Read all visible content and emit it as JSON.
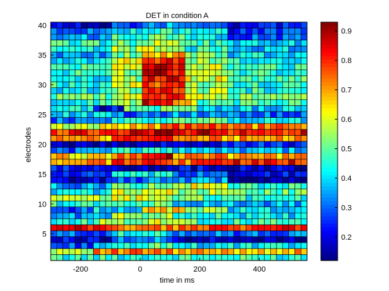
{
  "chart_data": {
    "type": "heatmap",
    "title": "DET in condition A",
    "xlabel": "time in ms",
    "ylabel": "electrodes",
    "xlim": [
      -300,
      560
    ],
    "ylim": [
      1,
      40
    ],
    "x_ticks": [
      -200,
      0,
      200,
      400
    ],
    "y_ticks": [
      5,
      10,
      15,
      20,
      25,
      30,
      35,
      40
    ],
    "grid": "cell borders",
    "rows": 40,
    "cols": 42,
    "colormap": "jet",
    "color_range": [
      0.12,
      0.93
    ],
    "colorbar_ticks": [
      0.2,
      0.3,
      0.4,
      0.5,
      0.6,
      0.7,
      0.8,
      0.9
    ],
    "row_profiles": [
      {
        "electrode": 1,
        "segments": [
          [
            -300,
            560,
            0.45
          ]
        ]
      },
      {
        "electrode": 2,
        "segments": [
          [
            -300,
            -150,
            0.6
          ],
          [
            -150,
            100,
            0.72
          ],
          [
            100,
            560,
            0.68
          ]
        ]
      },
      {
        "electrode": 3,
        "segments": [
          [
            -300,
            -150,
            0.28
          ],
          [
            -150,
            0,
            0.4
          ],
          [
            0,
            150,
            0.48
          ],
          [
            150,
            560,
            0.4
          ]
        ]
      },
      {
        "electrode": 4,
        "segments": [
          [
            -300,
            -100,
            0.2
          ],
          [
            -100,
            100,
            0.32
          ],
          [
            100,
            250,
            0.18
          ],
          [
            250,
            560,
            0.15
          ]
        ]
      },
      {
        "electrode": 5,
        "segments": [
          [
            -300,
            -100,
            0.3
          ],
          [
            -100,
            100,
            0.42
          ],
          [
            100,
            300,
            0.35
          ],
          [
            300,
            560,
            0.3
          ]
        ]
      },
      {
        "electrode": 6,
        "segments": [
          [
            -300,
            -100,
            0.82
          ],
          [
            -100,
            200,
            0.73
          ],
          [
            200,
            560,
            0.8
          ]
        ]
      },
      {
        "electrode": 7,
        "segments": [
          [
            -300,
            -150,
            0.45
          ],
          [
            -150,
            0,
            0.55
          ],
          [
            0,
            200,
            0.6
          ],
          [
            200,
            560,
            0.45
          ]
        ]
      },
      {
        "electrode": 8,
        "segments": [
          [
            -300,
            -100,
            0.35
          ],
          [
            -100,
            100,
            0.55
          ],
          [
            100,
            300,
            0.45
          ],
          [
            300,
            560,
            0.4
          ]
        ]
      },
      {
        "electrode": 9,
        "segments": [
          [
            -300,
            -150,
            0.28
          ],
          [
            -150,
            0,
            0.4
          ],
          [
            0,
            150,
            0.65
          ],
          [
            150,
            300,
            0.55
          ],
          [
            300,
            560,
            0.4
          ]
        ]
      },
      {
        "electrode": 10,
        "segments": [
          [
            -300,
            -100,
            0.45
          ],
          [
            -100,
            100,
            0.5
          ],
          [
            100,
            300,
            0.4
          ],
          [
            300,
            560,
            0.35
          ]
        ]
      },
      {
        "electrode": 11,
        "segments": [
          [
            -300,
            -100,
            0.55
          ],
          [
            -100,
            100,
            0.6
          ],
          [
            100,
            300,
            0.5
          ],
          [
            300,
            560,
            0.45
          ]
        ]
      },
      {
        "electrode": 12,
        "segments": [
          [
            -300,
            -100,
            0.4
          ],
          [
            -100,
            100,
            0.6
          ],
          [
            100,
            300,
            0.55
          ],
          [
            300,
            560,
            0.5
          ]
        ]
      },
      {
        "electrode": 13,
        "segments": [
          [
            -300,
            -100,
            0.35
          ],
          [
            -100,
            100,
            0.5
          ],
          [
            100,
            300,
            0.6
          ],
          [
            300,
            560,
            0.45
          ]
        ]
      },
      {
        "electrode": 14,
        "segments": [
          [
            -300,
            -100,
            0.18
          ],
          [
            -100,
            100,
            0.3
          ],
          [
            100,
            300,
            0.35
          ],
          [
            300,
            560,
            0.15
          ]
        ]
      },
      {
        "electrode": 15,
        "segments": [
          [
            -300,
            -100,
            0.25
          ],
          [
            -100,
            100,
            0.4
          ],
          [
            100,
            300,
            0.3
          ],
          [
            300,
            560,
            0.22
          ]
        ]
      },
      {
        "electrode": 16,
        "segments": [
          [
            -300,
            -100,
            0.22
          ],
          [
            -100,
            100,
            0.18
          ],
          [
            100,
            300,
            0.2
          ],
          [
            300,
            560,
            0.18
          ]
        ]
      },
      {
        "electrode": 17,
        "segments": [
          [
            -300,
            -100,
            0.7
          ],
          [
            -100,
            100,
            0.8
          ],
          [
            100,
            300,
            0.75
          ],
          [
            300,
            560,
            0.82
          ]
        ]
      },
      {
        "electrode": 18,
        "segments": [
          [
            -300,
            -100,
            0.65
          ],
          [
            -100,
            50,
            0.75
          ],
          [
            50,
            100,
            0.92
          ],
          [
            100,
            300,
            0.72
          ],
          [
            300,
            560,
            0.68
          ]
        ]
      },
      {
        "electrode": 19,
        "segments": [
          [
            -300,
            -100,
            0.3
          ],
          [
            -100,
            100,
            0.45
          ],
          [
            100,
            300,
            0.4
          ],
          [
            300,
            560,
            0.35
          ]
        ]
      },
      {
        "electrode": 20,
        "segments": [
          [
            -300,
            -100,
            0.15
          ],
          [
            -100,
            100,
            0.18
          ],
          [
            100,
            300,
            0.2
          ],
          [
            300,
            560,
            0.25
          ]
        ]
      },
      {
        "electrode": 21,
        "segments": [
          [
            -300,
            -100,
            0.7
          ],
          [
            -100,
            100,
            0.78
          ],
          [
            100,
            300,
            0.72
          ],
          [
            300,
            560,
            0.7
          ]
        ]
      },
      {
        "electrode": 22,
        "segments": [
          [
            -300,
            -100,
            0.8
          ],
          [
            -100,
            50,
            0.85
          ],
          [
            50,
            150,
            0.9
          ],
          [
            150,
            300,
            0.86
          ],
          [
            300,
            560,
            0.82
          ]
        ]
      },
      {
        "electrode": 23,
        "segments": [
          [
            -300,
            -100,
            0.6
          ],
          [
            -100,
            100,
            0.7
          ],
          [
            100,
            300,
            0.75
          ],
          [
            300,
            560,
            0.72
          ]
        ]
      },
      {
        "electrode": 24,
        "segments": [
          [
            -300,
            -100,
            0.3
          ],
          [
            -100,
            100,
            0.45
          ],
          [
            100,
            300,
            0.5
          ],
          [
            300,
            560,
            0.4
          ]
        ]
      },
      {
        "electrode": 25,
        "segments": [
          [
            -300,
            -100,
            0.4
          ],
          [
            -100,
            100,
            0.3
          ],
          [
            100,
            300,
            0.35
          ],
          [
            300,
            560,
            0.3
          ]
        ]
      },
      {
        "electrode": 26,
        "segments": [
          [
            -300,
            -150,
            0.4
          ],
          [
            -150,
            -50,
            0.2
          ],
          [
            -50,
            200,
            0.5
          ],
          [
            200,
            560,
            0.38
          ]
        ]
      },
      {
        "electrode": 27,
        "segments": [
          [
            -300,
            -100,
            0.45
          ],
          [
            -100,
            0,
            0.55
          ],
          [
            0,
            100,
            0.85
          ],
          [
            100,
            200,
            0.65
          ],
          [
            200,
            560,
            0.48
          ]
        ]
      },
      {
        "electrode": 28,
        "segments": [
          [
            -300,
            -100,
            0.5
          ],
          [
            -100,
            0,
            0.6
          ],
          [
            0,
            150,
            0.8
          ],
          [
            150,
            300,
            0.6
          ],
          [
            300,
            560,
            0.5
          ]
        ]
      },
      {
        "electrode": 29,
        "segments": [
          [
            -300,
            -100,
            0.4
          ],
          [
            -100,
            0,
            0.55
          ],
          [
            0,
            150,
            0.8
          ],
          [
            150,
            300,
            0.55
          ],
          [
            300,
            560,
            0.45
          ]
        ]
      },
      {
        "electrode": 30,
        "segments": [
          [
            -300,
            -100,
            0.45
          ],
          [
            -100,
            0,
            0.6
          ],
          [
            0,
            150,
            0.78
          ],
          [
            150,
            300,
            0.55
          ],
          [
            300,
            560,
            0.45
          ]
        ]
      },
      {
        "electrode": 31,
        "segments": [
          [
            -300,
            -100,
            0.4
          ],
          [
            -100,
            0,
            0.55
          ],
          [
            0,
            150,
            0.82
          ],
          [
            150,
            300,
            0.6
          ],
          [
            300,
            560,
            0.48
          ]
        ]
      },
      {
        "electrode": 32,
        "segments": [
          [
            -300,
            -100,
            0.45
          ],
          [
            -100,
            0,
            0.55
          ],
          [
            0,
            150,
            0.85
          ],
          [
            150,
            300,
            0.6
          ],
          [
            300,
            560,
            0.45
          ]
        ]
      },
      {
        "electrode": 33,
        "segments": [
          [
            -300,
            -100,
            0.5
          ],
          [
            -100,
            0,
            0.6
          ],
          [
            0,
            150,
            0.85
          ],
          [
            150,
            300,
            0.58
          ],
          [
            300,
            560,
            0.45
          ]
        ]
      },
      {
        "electrode": 34,
        "segments": [
          [
            -300,
            -100,
            0.4
          ],
          [
            -100,
            0,
            0.6
          ],
          [
            0,
            150,
            0.8
          ],
          [
            150,
            300,
            0.55
          ],
          [
            300,
            560,
            0.45
          ]
        ]
      },
      {
        "electrode": 35,
        "segments": [
          [
            -300,
            -100,
            0.35
          ],
          [
            -100,
            0,
            0.5
          ],
          [
            0,
            150,
            0.7
          ],
          [
            150,
            300,
            0.5
          ],
          [
            300,
            560,
            0.4
          ]
        ]
      },
      {
        "electrode": 36,
        "segments": [
          [
            -300,
            -100,
            0.4
          ],
          [
            -100,
            0,
            0.55
          ],
          [
            0,
            150,
            0.6
          ],
          [
            150,
            300,
            0.45
          ],
          [
            300,
            560,
            0.38
          ]
        ]
      },
      {
        "electrode": 37,
        "segments": [
          [
            -300,
            -100,
            0.45
          ],
          [
            -100,
            0,
            0.5
          ],
          [
            0,
            150,
            0.55
          ],
          [
            150,
            300,
            0.45
          ],
          [
            300,
            560,
            0.4
          ]
        ]
      },
      {
        "electrode": 38,
        "segments": [
          [
            -300,
            -100,
            0.35
          ],
          [
            -100,
            0,
            0.45
          ],
          [
            0,
            150,
            0.5
          ],
          [
            150,
            300,
            0.4
          ],
          [
            300,
            560,
            0.3
          ]
        ]
      },
      {
        "electrode": 39,
        "segments": [
          [
            -300,
            -100,
            0.3
          ],
          [
            -100,
            0,
            0.4
          ],
          [
            0,
            150,
            0.45
          ],
          [
            150,
            300,
            0.4
          ],
          [
            300,
            560,
            0.25
          ]
        ]
      },
      {
        "electrode": 40,
        "segments": [
          [
            -300,
            -100,
            0.2
          ],
          [
            -100,
            0,
            0.3
          ],
          [
            0,
            150,
            0.35
          ],
          [
            150,
            300,
            0.3
          ],
          [
            300,
            560,
            0.22
          ]
        ]
      }
    ]
  }
}
